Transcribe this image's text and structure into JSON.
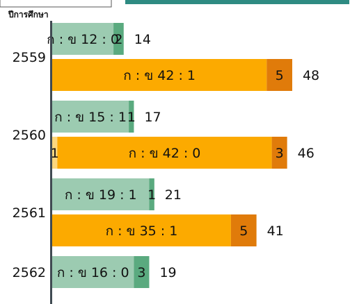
{
  "chart_data": {
    "type": "bar",
    "orientation": "horizontal",
    "stacked": true,
    "ylabel": "ปีการศึกษา",
    "categories": [
      "2559",
      "2560",
      "2561",
      "2562"
    ],
    "groups": [
      {
        "year": "2559",
        "bars": [
          {
            "segments": [
              {
                "value": 12,
                "label": "ก : ข 12 : 0",
                "color": "#9ccbb1"
              },
              {
                "value": 2,
                "label": "2",
                "color": "#5aaa7f"
              }
            ],
            "total": "14"
          },
          {
            "segments": [
              {
                "value": 42,
                "label": "ก : ข  42 : 1",
                "color": "#fcaa00"
              },
              {
                "value": 5,
                "label": "5",
                "color": "#e07b0a"
              }
            ],
            "total": "48"
          }
        ]
      },
      {
        "year": "2560",
        "bars": [
          {
            "segments": [
              {
                "value": 15,
                "label": "ก : ข 15 : 1",
                "color": "#9ccbb1"
              },
              {
                "value": 1,
                "label": "1",
                "color": "#5aaa7f"
              }
            ],
            "total": "17"
          },
          {
            "segments": [
              {
                "value": 1,
                "label": "1",
                "color": "#fdd77e"
              },
              {
                "value": 42,
                "label": "ก : ข  42 : 0",
                "color": "#fcaa00"
              },
              {
                "value": 3,
                "label": "3",
                "color": "#e07b0a"
              }
            ],
            "total": "46"
          }
        ]
      },
      {
        "year": "2561",
        "bars": [
          {
            "segments": [
              {
                "value": 19,
                "label": "ก : ข 19 : 1",
                "color": "#9ccbb1"
              },
              {
                "value": 1,
                "label": "1",
                "color": "#5aaa7f"
              }
            ],
            "total": "21"
          },
          {
            "segments": [
              {
                "value": 35,
                "label": "ก : ข 35 : 1",
                "color": "#fcaa00"
              },
              {
                "value": 5,
                "label": "5",
                "color": "#e07b0a"
              }
            ],
            "total": "41"
          }
        ]
      },
      {
        "year": "2562",
        "bars": [
          {
            "segments": [
              {
                "value": 16,
                "label": "ก : ข 16 : 0",
                "color": "#9ccbb1"
              },
              {
                "value": 3,
                "label": "3",
                "color": "#5aaa7f"
              }
            ],
            "total": "19"
          }
        ]
      }
    ],
    "colors": {
      "axis": "#404a52",
      "header_bar": "#2e8b82",
      "text": "#111111"
    }
  }
}
